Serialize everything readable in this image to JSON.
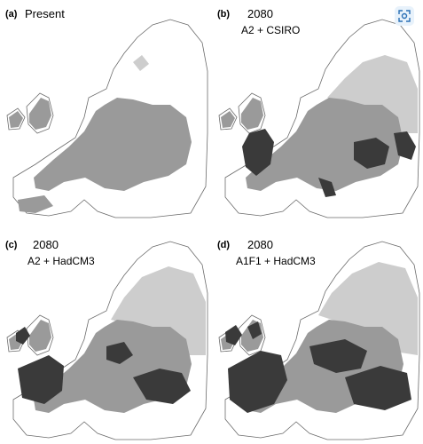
{
  "panels": [
    {
      "label": "(a)",
      "title": "Present",
      "scenario": ""
    },
    {
      "label": "(b)",
      "title": "2080",
      "scenario": "A2 + CSIRO"
    },
    {
      "label": "(c)",
      "title": "2080",
      "scenario": "A2 + HadCM3"
    },
    {
      "label": "(d)",
      "title": "2080",
      "scenario": "A1F1 + HadCM3"
    }
  ],
  "legend_colors": {
    "land": "#ffffff",
    "coast": "#6b6b6b",
    "present_range": "#9a9a9a",
    "northern_expansion": "#cdcdcd",
    "southern_range": "#3a3a3a"
  },
  "overlay": {
    "icon": "scan-icon"
  }
}
